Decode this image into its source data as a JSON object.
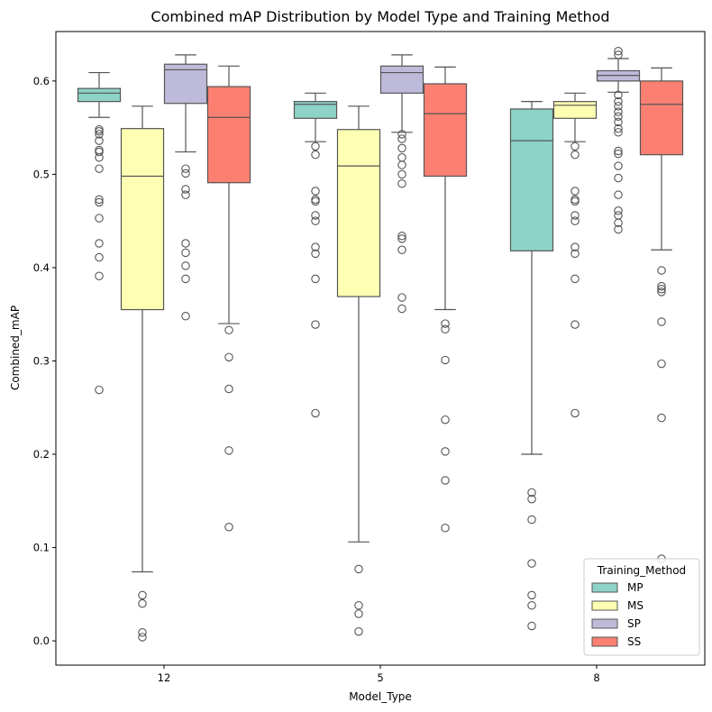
{
  "chart_data": {
    "type": "boxplot",
    "title": "Combined mAP Distribution by Model Type and Training Method",
    "xlabel": "Model_Type",
    "ylabel": "Combined_mAP",
    "categories": [
      "12",
      "5",
      "8"
    ],
    "ylim": [
      -0.026,
      0.653
    ],
    "yticks": [
      0.0,
      0.1,
      0.2,
      0.3,
      0.4,
      0.5,
      0.6
    ],
    "ytick_labels": [
      "0.0",
      "0.1",
      "0.2",
      "0.3",
      "0.4",
      "0.5",
      "0.6"
    ],
    "legend": {
      "title": "Training_Method",
      "position": "bottom-right",
      "entries": [
        "MP",
        "MS",
        "SP",
        "SS"
      ]
    },
    "series": [
      {
        "name": "MP",
        "color": "#8dd3c7",
        "boxes": [
          {
            "whislo": 0.561,
            "q1": 0.578,
            "med": 0.587,
            "q3": 0.592,
            "whishi": 0.609,
            "fliers": [
              0.548,
              0.546,
              0.543,
              0.536,
              0.526,
              0.524,
              0.518,
              0.506,
              0.473,
              0.47,
              0.453,
              0.426,
              0.411,
              0.391,
              0.269
            ]
          },
          {
            "whislo": 0.535,
            "q1": 0.56,
            "med": 0.575,
            "q3": 0.578,
            "whishi": 0.587,
            "fliers": [
              0.53,
              0.521,
              0.482,
              0.473,
              0.471,
              0.456,
              0.45,
              0.422,
              0.415,
              0.388,
              0.339,
              0.244
            ]
          },
          {
            "whislo": 0.2,
            "q1": 0.418,
            "med": 0.536,
            "q3": 0.57,
            "whishi": 0.578,
            "fliers": [
              0.159,
              0.152,
              0.13,
              0.083,
              0.049,
              0.038,
              0.016
            ]
          }
        ]
      },
      {
        "name": "MS",
        "color": "#ffffb3",
        "boxes": [
          {
            "whislo": 0.074,
            "q1": 0.355,
            "med": 0.498,
            "q3": 0.549,
            "whishi": 0.573,
            "fliers": [
              0.049,
              0.04,
              0.009,
              0.004
            ]
          },
          {
            "whislo": 0.106,
            "q1": 0.369,
            "med": 0.509,
            "q3": 0.548,
            "whishi": 0.573,
            "fliers": [
              0.077,
              0.038,
              0.029,
              0.01
            ]
          },
          {
            "whislo": 0.535,
            "q1": 0.56,
            "med": 0.574,
            "q3": 0.578,
            "whishi": 0.587,
            "fliers": [
              0.53,
              0.521,
              0.482,
              0.473,
              0.471,
              0.456,
              0.45,
              0.422,
              0.415,
              0.388,
              0.339,
              0.244
            ]
          }
        ]
      },
      {
        "name": "SP",
        "color": "#bebada",
        "boxes": [
          {
            "whislo": 0.524,
            "q1": 0.576,
            "med": 0.612,
            "q3": 0.618,
            "whishi": 0.628,
            "fliers": [
              0.506,
              0.501,
              0.484,
              0.478,
              0.426,
              0.416,
              0.402,
              0.388,
              0.348
            ]
          },
          {
            "whislo": 0.545,
            "q1": 0.587,
            "med": 0.609,
            "q3": 0.616,
            "whishi": 0.628,
            "fliers": [
              0.543,
              0.538,
              0.528,
              0.518,
              0.51,
              0.5,
              0.49,
              0.434,
              0.431,
              0.419,
              0.368,
              0.356
            ]
          },
          {
            "whislo": 0.588,
            "q1": 0.6,
            "med": 0.606,
            "q3": 0.611,
            "whishi": 0.624,
            "fliers": [
              0.632,
              0.628,
              0.585,
              0.578,
              0.573,
              0.567,
              0.562,
              0.556,
              0.549,
              0.545,
              0.525,
              0.522,
              0.509,
              0.496,
              0.478,
              0.461,
              0.456,
              0.448,
              0.441
            ]
          }
        ]
      },
      {
        "name": "SS",
        "color": "#fb8072",
        "boxes": [
          {
            "whislo": 0.34,
            "q1": 0.491,
            "med": 0.561,
            "q3": 0.594,
            "whishi": 0.616,
            "fliers": [
              0.333,
              0.304,
              0.27,
              0.204,
              0.122
            ]
          },
          {
            "whislo": 0.355,
            "q1": 0.498,
            "med": 0.565,
            "q3": 0.597,
            "whishi": 0.615,
            "fliers": [
              0.34,
              0.334,
              0.301,
              0.237,
              0.203,
              0.172,
              0.121
            ]
          },
          {
            "whislo": 0.419,
            "q1": 0.521,
            "med": 0.575,
            "q3": 0.6,
            "whishi": 0.614,
            "fliers": [
              0.397,
              0.38,
              0.377,
              0.374,
              0.342,
              0.297,
              0.239,
              0.088
            ]
          }
        ]
      }
    ]
  }
}
